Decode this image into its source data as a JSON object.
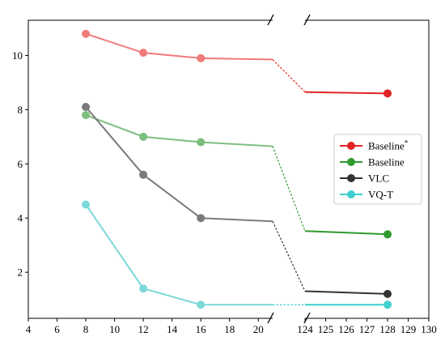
{
  "chart_data": {
    "type": "line",
    "title": "",
    "xlabel": "",
    "ylabel": "",
    "broken_x_axis": true,
    "left_panel": {
      "xlim": [
        4,
        21
      ],
      "xticks": [
        "4",
        "6",
        "8",
        "10",
        "12",
        "14",
        "16",
        "18",
        "20"
      ]
    },
    "right_panel": {
      "xlim": [
        124,
        130
      ],
      "xticks": [
        "124",
        "125",
        "126",
        "127",
        "128",
        "129",
        "130"
      ]
    },
    "ylim": [
      0.3,
      11.3
    ],
    "yticks": [
      "2",
      "4",
      "6",
      "8",
      "10"
    ],
    "grid": false,
    "legend_position": "right",
    "series": [
      {
        "name": "Baseline",
        "name_superscript": "*",
        "color": "#f07b7b",
        "right_color": "#e02424",
        "x": [
          8,
          12,
          16,
          124,
          128
        ],
        "y": [
          10.8,
          10.1,
          9.9,
          8.65,
          8.6
        ],
        "left_end_y": 9.85
      },
      {
        "name": "Baseline",
        "name_superscript": "",
        "color": "#7dbd7d",
        "right_color": "#2e9a2e",
        "x": [
          8,
          12,
          16,
          124,
          128
        ],
        "y": [
          7.8,
          7.0,
          6.8,
          3.52,
          3.4
        ],
        "left_end_y": 6.65
      },
      {
        "name": "VLC",
        "name_superscript": "",
        "color": "#7a7a7a",
        "right_color": "#333333",
        "x": [
          8,
          12,
          16,
          124,
          128
        ],
        "y": [
          8.1,
          5.6,
          4.0,
          1.3,
          1.2
        ],
        "left_end_y": 3.88
      },
      {
        "name": "VQ-T",
        "name_superscript": "",
        "color": "#7dd8d8",
        "right_color": "#3fcfcf",
        "x": [
          8,
          12,
          16,
          124,
          128
        ],
        "y": [
          4.5,
          1.4,
          0.8,
          0.8,
          0.8
        ],
        "left_end_y": 0.8
      }
    ]
  }
}
